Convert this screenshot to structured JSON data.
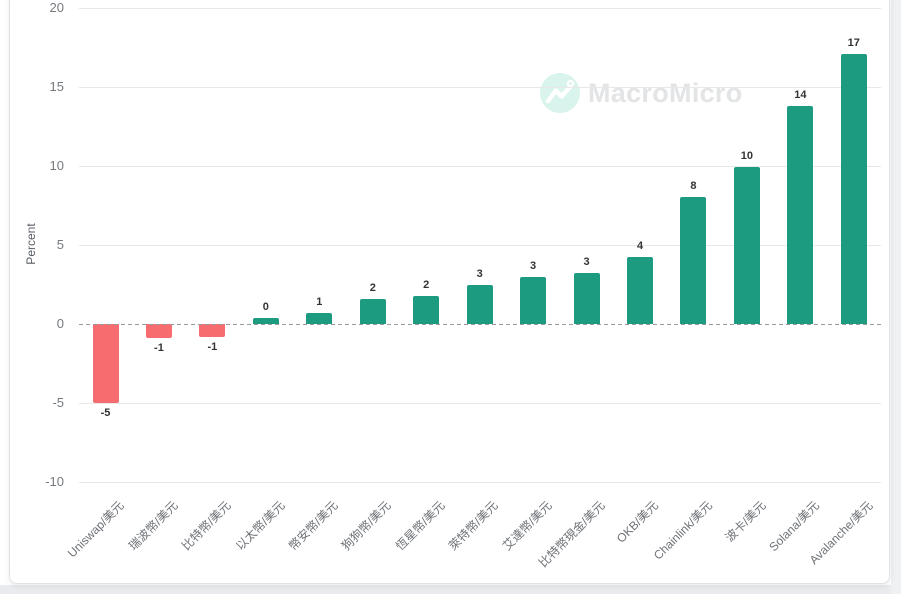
{
  "watermark": {
    "brand": "MacroMicro",
    "icon": "macromicro-logo-icon"
  },
  "colors": {
    "positive": "#1d9b80",
    "negative": "#f76c6f",
    "grid": "#e8e8e8",
    "zero_line": "#9a9a9a",
    "tick_label": "#75797e",
    "axis_title": "#595d63",
    "category_label": "#6e7277",
    "value_label": "#333333",
    "watermark_text": "#e2e4e6",
    "watermark_circle": "#d9f4ec",
    "card_border": "#dfe3e8",
    "page_strip": "#e9ebee",
    "page_strip_right": "#eef0f2"
  },
  "chart_data": {
    "type": "bar",
    "title": "",
    "xlabel": "",
    "ylabel": "Percent",
    "ylim": [
      -10,
      20
    ],
    "yticks": [
      20,
      15,
      10,
      5,
      0,
      -5,
      -10
    ],
    "grid": true,
    "zero_line_style": "dashed",
    "legend": "none",
    "categories": [
      "Uniswap/美元",
      "瑞波幣/美元",
      "比特幣/美元",
      "以太幣/美元",
      "幣安幣/美元",
      "狗狗幣/美元",
      "恆星幣/美元",
      "萊特幣/美元",
      "艾達幣/美元",
      "比特幣現金/美元",
      "OKB/美元",
      "Chainlink/美元",
      "波卡/美元",
      "Solana/美元",
      "Avalanche/美元"
    ],
    "values": [
      -5,
      -1,
      -1,
      0,
      1,
      2,
      2,
      3,
      3,
      3,
      4,
      8,
      10,
      14,
      17
    ],
    "values_precise": [
      -5.0,
      -0.9,
      -0.85,
      0.35,
      0.7,
      1.6,
      1.75,
      2.5,
      3.0,
      3.25,
      4.25,
      8.05,
      9.95,
      13.8,
      17.1
    ],
    "value_labels": [
      "-5",
      "-1",
      "-1",
      "0",
      "1",
      "2",
      "2",
      "3",
      "3",
      "3",
      "4",
      "8",
      "10",
      "14",
      "17"
    ]
  }
}
